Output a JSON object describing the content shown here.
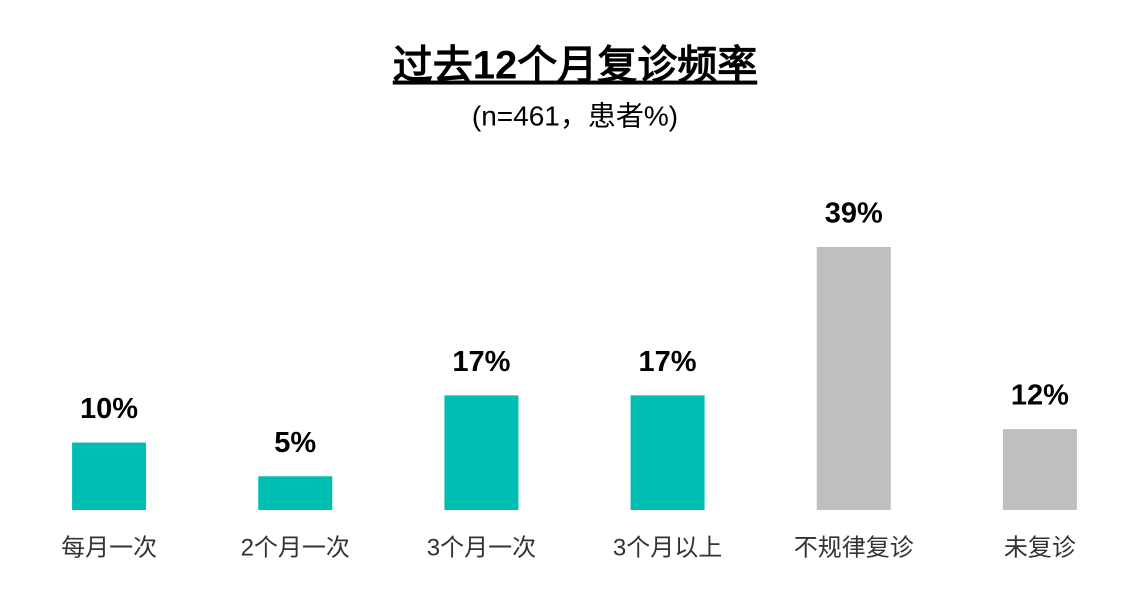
{
  "chart_data": {
    "type": "bar",
    "title": "过去12个月复诊频率",
    "subtitle": "(n=461，患者%)",
    "categories": [
      "每月一次",
      "2个月一次",
      "3个月一次",
      "3个月以上",
      "不规律复诊",
      "未复诊"
    ],
    "values": [
      10,
      5,
      17,
      17,
      39,
      12
    ],
    "value_labels": [
      "10%",
      "5%",
      "17%",
      "17%",
      "39%",
      "12%"
    ],
    "colors": [
      "#00bfb2",
      "#00bfb2",
      "#00bfb2",
      "#00bfb2",
      "#bfbfbf",
      "#bfbfbf"
    ]
  }
}
